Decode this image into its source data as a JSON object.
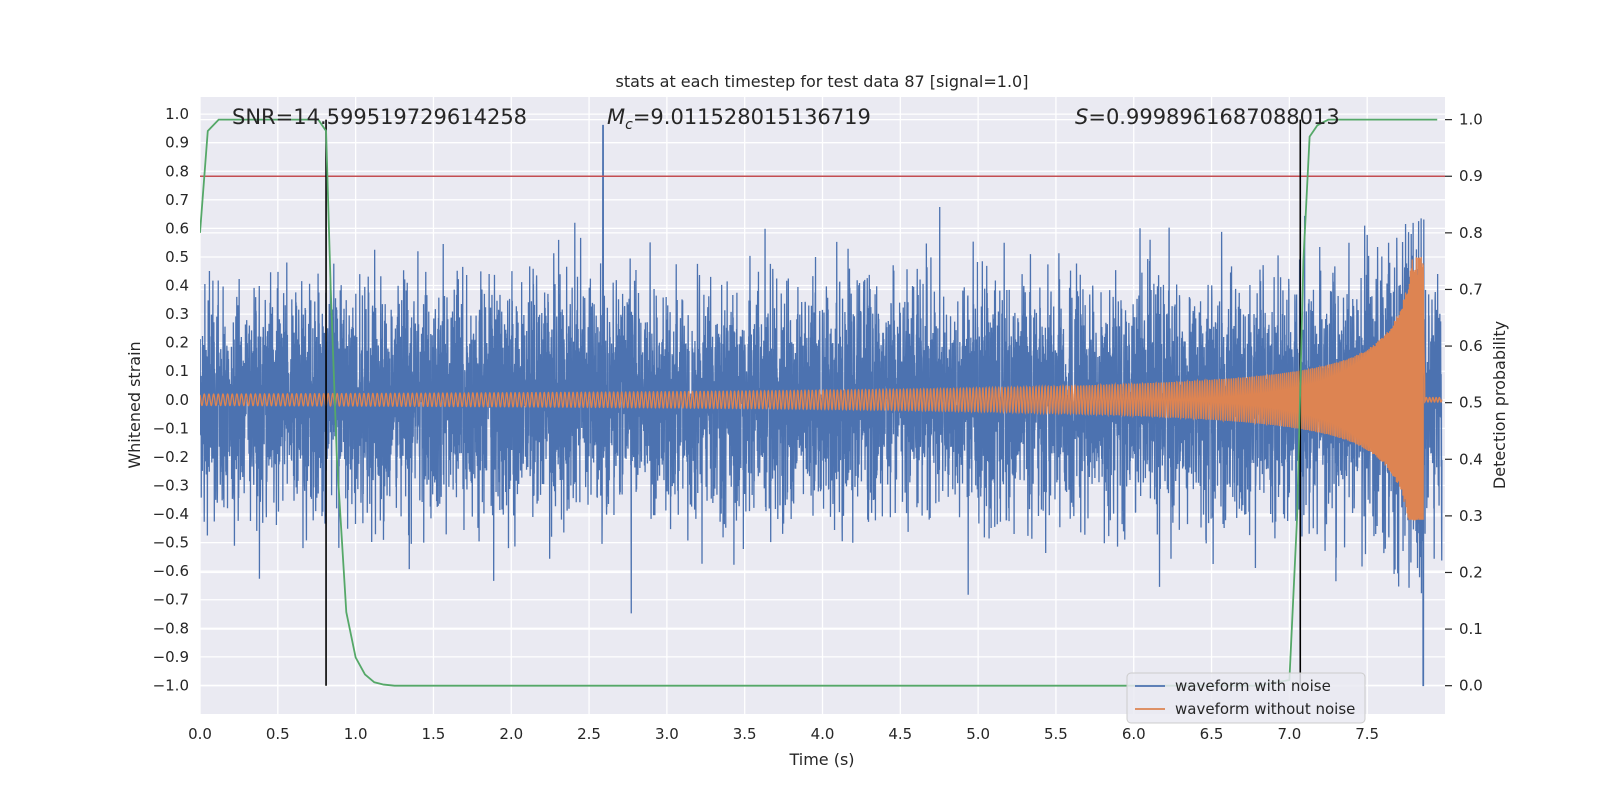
{
  "chart_data": {
    "type": "line",
    "title": "stats at each timestep for test data 87 [signal=1.0]",
    "xlabel": "Time (s)",
    "ylabel": "Whitened strain",
    "y2label": "Detection probability",
    "xlim": [
      0.0,
      8.0
    ],
    "ylim": [
      -1.1,
      1.06
    ],
    "y2lim": [
      -0.05,
      1.04
    ],
    "xticks": [
      "0.0",
      "0.5",
      "1.0",
      "1.5",
      "2.0",
      "2.5",
      "3.0",
      "3.5",
      "4.0",
      "4.5",
      "5.0",
      "5.5",
      "6.0",
      "6.5",
      "7.0",
      "7.5"
    ],
    "yticks": [
      "1.0",
      "0.9",
      "0.8",
      "0.7",
      "0.6",
      "0.5",
      "0.4",
      "0.3",
      "0.2",
      "0.1",
      "0.0",
      "-0.1",
      "-0.2",
      "-0.3",
      "-0.4",
      "-0.5",
      "-0.6",
      "-0.7",
      "-0.8",
      "-0.9",
      "-1.0"
    ],
    "y2ticks": [
      "1.0",
      "0.9",
      "0.8",
      "0.7",
      "0.6",
      "0.5",
      "0.4",
      "0.3",
      "0.2",
      "0.1",
      "0.0"
    ],
    "annotations": {
      "snr": "SNR=14.599519729614258",
      "mc_symbol": "M",
      "mc_sub": "c",
      "mc_value": "=9.011528015136719",
      "s_symbol": "S",
      "s_value": "=0.9998961687088013"
    },
    "threshold": {
      "axis": "y2",
      "value": 0.9,
      "color": "#c44e52"
    },
    "vlines": [
      0.81,
      7.07
    ],
    "series": [
      {
        "name": "waveform with noise",
        "axis": "y",
        "color": "#4c72b0",
        "kind": "noise",
        "amp_rms": 0.19,
        "max": 0.96,
        "min": -1.0
      },
      {
        "name": "waveform without noise",
        "axis": "y",
        "color": "#dd8452",
        "kind": "chirp",
        "t_start": 0.0,
        "t_merger": 7.86,
        "amp_start": 0.02,
        "amp_peak": 0.5,
        "amp_min": -0.42
      },
      {
        "name": "detection probability",
        "axis": "y2",
        "color": "#55a868",
        "x": [
          0.0,
          0.05,
          0.12,
          0.2,
          0.76,
          0.81,
          0.84,
          0.88,
          0.94,
          1.0,
          1.06,
          1.12,
          1.18,
          1.25,
          1.4,
          2.0,
          4.0,
          6.0,
          6.8,
          7.0,
          7.05,
          7.09,
          7.13,
          7.18,
          7.25,
          7.4,
          7.95
        ],
        "y": [
          0.8,
          0.98,
          1.0,
          1.0,
          1.0,
          0.98,
          0.7,
          0.4,
          0.13,
          0.05,
          0.02,
          0.006,
          0.002,
          0.0,
          0.0,
          0.0,
          0.0,
          0.0,
          0.0,
          0.01,
          0.3,
          0.75,
          0.97,
          0.99,
          1.0,
          1.0,
          1.0
        ]
      }
    ],
    "legend": {
      "placement": "lower-right",
      "entries": [
        "waveform with noise",
        "waveform without noise"
      ]
    }
  }
}
